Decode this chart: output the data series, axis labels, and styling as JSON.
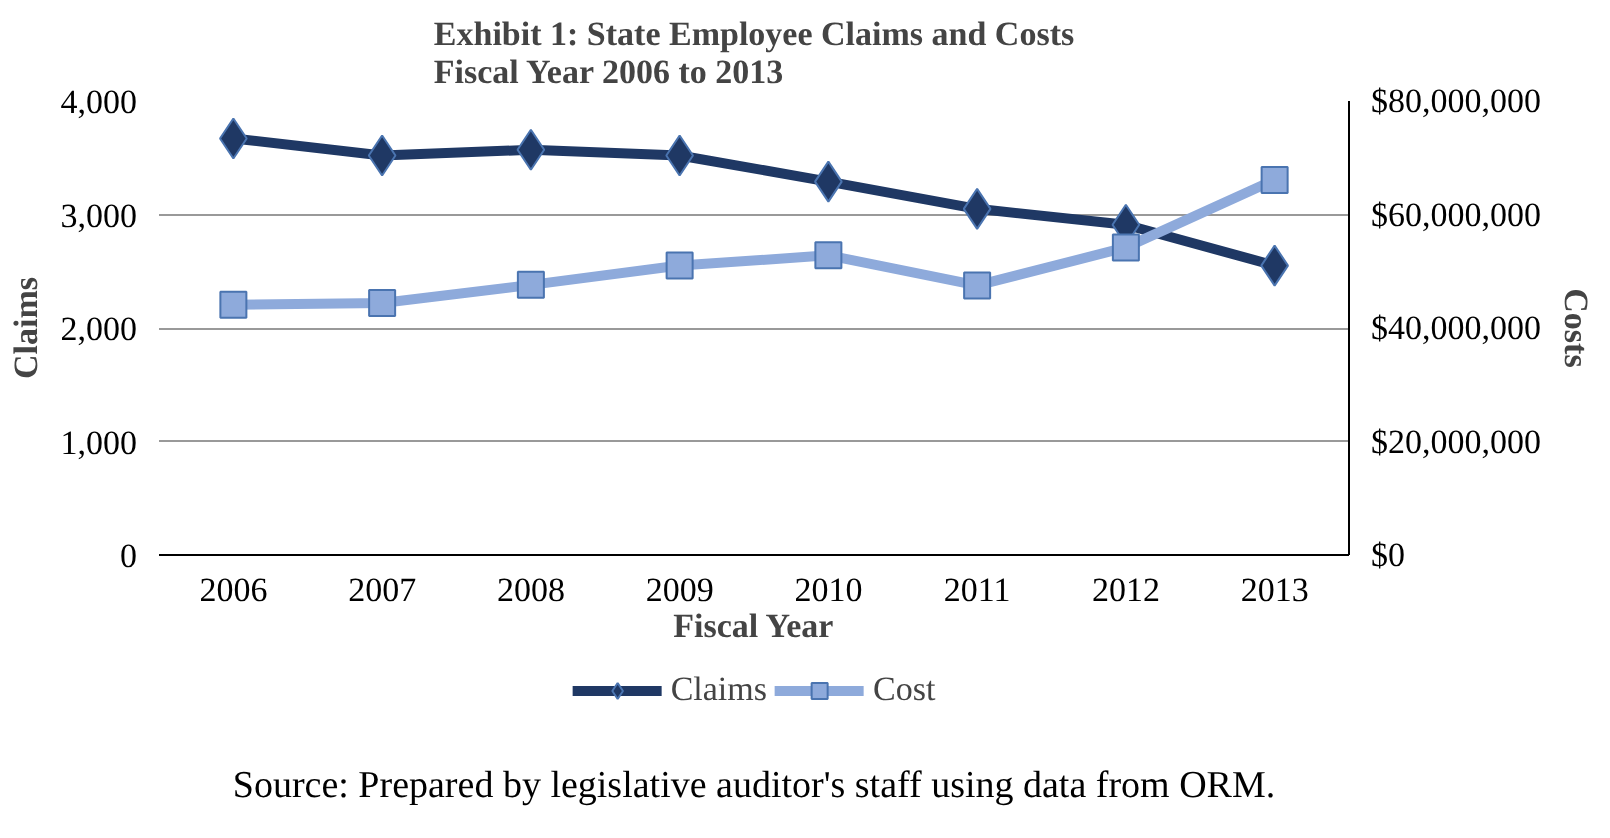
{
  "chart_data": {
    "type": "line",
    "title": "Exhibit 1: State Employee Claims and Costs\nFiscal Year 2006 to 2013",
    "categories": [
      "2006",
      "2007",
      "2008",
      "2009",
      "2010",
      "2011",
      "2012",
      "2013"
    ],
    "xlabel": "Fiscal Year",
    "ylabel": "Claims",
    "y2label": "Costs",
    "series": [
      {
        "name": "Claims",
        "color": "#1f3864",
        "marker": "diamond",
        "values": [
          3670,
          3520,
          3570,
          3520,
          3290,
          3050,
          2910,
          2550
        ]
      },
      {
        "name": "Cost",
        "color": "#8eaadb",
        "marker": "square",
        "axis": "y2",
        "values": [
          44100000,
          44400000,
          47600000,
          51000000,
          52800000,
          47500000,
          54200000,
          66100000
        ]
      }
    ],
    "ylim": [
      0,
      4000
    ],
    "yticks": [
      0,
      {
        "value": 1000,
        "label": "1,000"
      },
      {
        "value": 2000,
        "label": "2,000"
      },
      {
        "value": 3000,
        "label": "3,000"
      },
      {
        "value": 4000,
        "label": "4,000"
      }
    ],
    "y2lim": [
      0,
      80000000
    ],
    "y2ticks": [
      {
        "value": 0,
        "label": "$0"
      },
      {
        "value": 20000000,
        "label": "$20,000,000"
      },
      {
        "value": 40000000,
        "label": "$40,000,000"
      },
      {
        "value": 60000000,
        "label": "$60,000,000"
      },
      {
        "value": 80000000,
        "label": "$80,000,000"
      }
    ],
    "grid": "y",
    "legend": "bottom",
    "annotations": [
      "Source: Prepared by legislative auditor's staff using data from ORM."
    ]
  }
}
